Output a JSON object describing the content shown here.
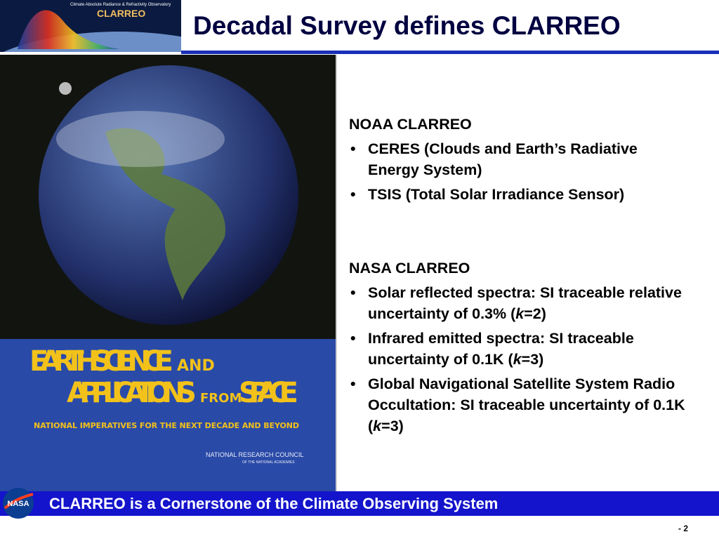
{
  "header": {
    "logo_subtitle": "Climate Absolute Radiance & Refractivity Observatory",
    "logo_name": "CLARREO",
    "title": "Decadal Survey defines CLARREO"
  },
  "book": {
    "title_line1": "EARTH SCIENCE",
    "title_and": "AND",
    "title_line2a": "APPLICATIONS",
    "title_from": "FROM",
    "title_line2b": "SPACE",
    "subtitle": "NATIONAL IMPERATIVES FOR THE NEXT DECADE AND BEYOND",
    "publisher": "NATIONAL RESEARCH COUNCIL",
    "publisher_sub": "OF THE NATIONAL ACADEMIES"
  },
  "sections": [
    {
      "heading": "NOAA CLARREO",
      "bullets": [
        {
          "parts": [
            "CERES (Clouds and Earth’s Radiative Energy System)"
          ]
        },
        {
          "parts": [
            "TSIS (Total Solar Irradiance Sensor)"
          ]
        }
      ]
    },
    {
      "heading": "NASA CLARREO",
      "bullets": [
        {
          "parts": [
            "Solar reflected spectra: SI traceable relative uncertainty of 0.3% (",
            "k",
            "=2)"
          ]
        },
        {
          "parts": [
            "Infrared emitted spectra: SI traceable uncertainty of 0.1K (",
            "k",
            "=3)"
          ]
        },
        {
          "parts": [
            "Global Navigational Satellite System Radio Occultation: SI traceable uncertainty of 0.1K (",
            "k",
            "=3)"
          ]
        }
      ]
    }
  ],
  "footer": {
    "logo": "NASA",
    "text": "CLARREO is a Cornerstone of the Climate Observing System",
    "page": "- 2"
  }
}
